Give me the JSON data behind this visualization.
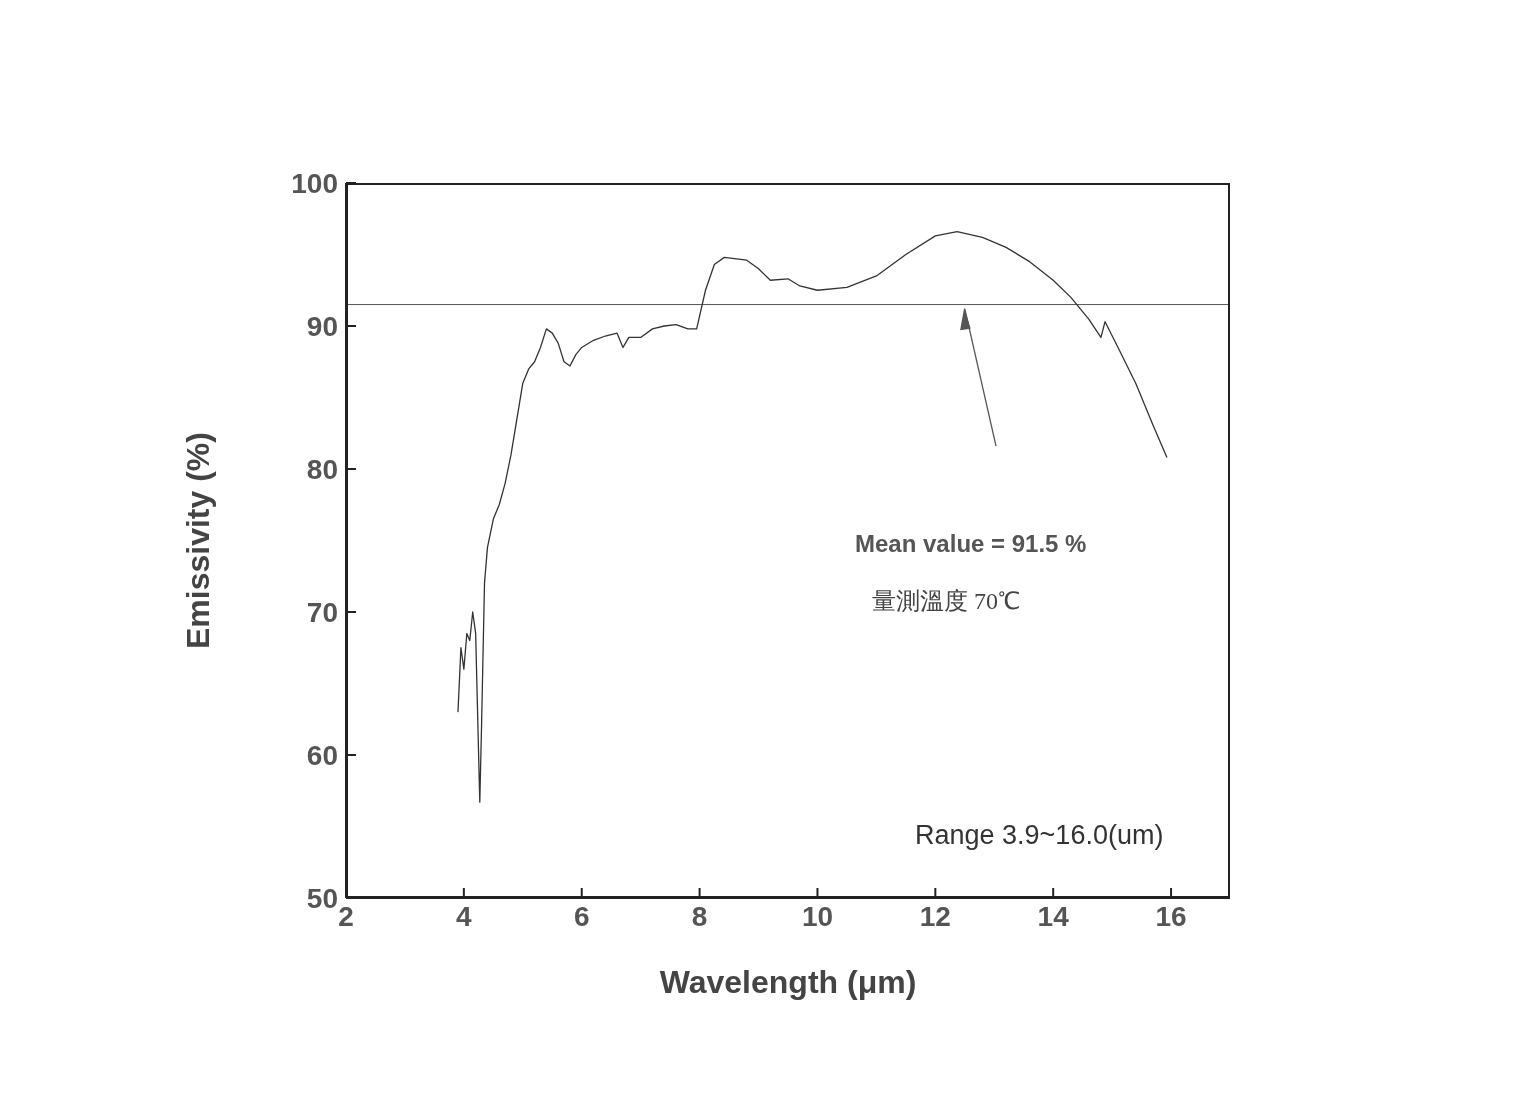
{
  "chart_data": {
    "type": "line",
    "xlabel": "Wavelength (μm)",
    "ylabel": "Emissivity (%)",
    "x": [
      3.9,
      3.95,
      4.0,
      4.05,
      4.1,
      4.15,
      4.2,
      4.27,
      4.3,
      4.35,
      4.4,
      4.5,
      4.6,
      4.7,
      4.8,
      4.9,
      5.0,
      5.1,
      5.2,
      5.3,
      5.4,
      5.5,
      5.6,
      5.7,
      5.8,
      5.9,
      6.0,
      6.2,
      6.4,
      6.6,
      6.7,
      6.8,
      7.0,
      7.2,
      7.4,
      7.6,
      7.8,
      7.95,
      8.1,
      8.25,
      8.42,
      8.8,
      9.0,
      9.2,
      9.5,
      9.7,
      10.0,
      10.5,
      11.0,
      11.5,
      12.0,
      12.37,
      12.8,
      13.2,
      13.6,
      14.0,
      14.3,
      14.6,
      14.81,
      14.88,
      15.1,
      15.4,
      15.7,
      15.93
    ],
    "series": [
      {
        "color": "#333333",
        "values": [
          63,
          67.5,
          66,
          68.5,
          68,
          70,
          68.5,
          56.7,
          62,
          72,
          74.5,
          76.5,
          77.5,
          79,
          81,
          83.5,
          86,
          87,
          87.5,
          88.5,
          89.8,
          89.5,
          88.8,
          87.5,
          87.2,
          88,
          88.5,
          89,
          89.3,
          89.5,
          88.5,
          89.2,
          89.2,
          89.8,
          90,
          90.1,
          89.8,
          89.8,
          92.5,
          94.3,
          94.8,
          94.6,
          94,
          93.2,
          93.3,
          92.8,
          92.5,
          92.7,
          93.5,
          95,
          96.3,
          96.6,
          96.2,
          95.5,
          94.5,
          93.2,
          92,
          90.5,
          89.2,
          90.3,
          88.5,
          86,
          83,
          80.8
        ]
      }
    ],
    "xlim": [
      2,
      17
    ],
    "xticks": [
      2,
      4,
      6,
      8,
      10,
      12,
      14,
      16
    ],
    "ylim": [
      50,
      100
    ],
    "yticks": [
      50,
      60,
      70,
      80,
      90,
      100
    ],
    "grid": false,
    "legend": false,
    "marker": "none",
    "line_style": "solid",
    "ref_lines": [
      {
        "axis": "y",
        "value": 91.5,
        "label": null,
        "color": "#555555"
      }
    ],
    "annotations": [
      "Mean value = 91.5 %",
      "量測溫度 70℃",
      "Range 3.9~16.0(um)"
    ]
  }
}
